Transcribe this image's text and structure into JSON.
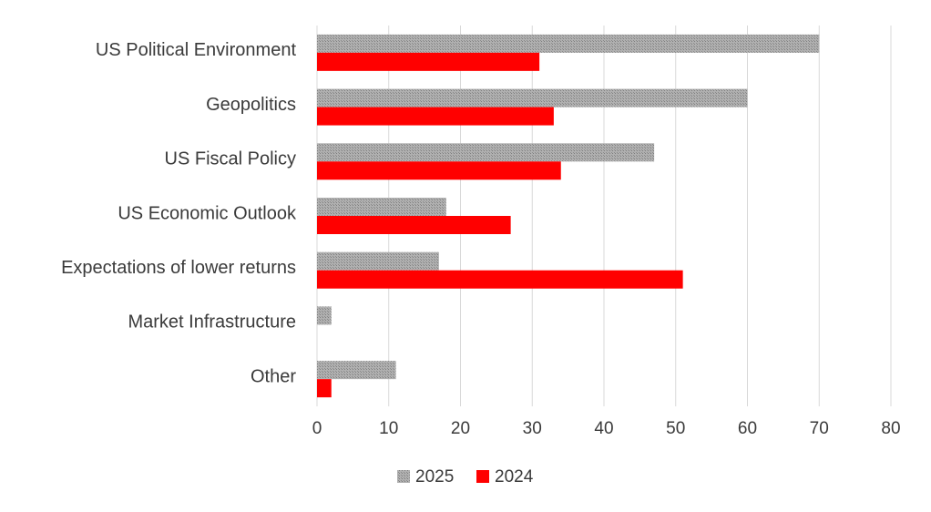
{
  "chart_data": {
    "type": "bar",
    "orientation": "horizontal",
    "title": "",
    "xlabel": "",
    "ylabel": "",
    "categories": [
      "US Political Environment",
      "Geopolitics",
      "US Fiscal Policy",
      "US Economic Outlook",
      "Expectations of lower returns",
      "Market Infrastructure",
      "Other"
    ],
    "series": [
      {
        "name": "2025",
        "color": "#a6a6a6",
        "pattern": "dotted-gray",
        "values": [
          70,
          60,
          47,
          18,
          17,
          2,
          11
        ]
      },
      {
        "name": "2024",
        "color": "#ff0000",
        "values": [
          31,
          33,
          34,
          27,
          51,
          null,
          2
        ]
      }
    ],
    "xlim": [
      0,
      80
    ],
    "xticks": [
      "0",
      "10",
      "20",
      "30",
      "40",
      "50",
      "60",
      "70",
      "80"
    ],
    "grid": "vertical",
    "legend": "bottom-center"
  }
}
